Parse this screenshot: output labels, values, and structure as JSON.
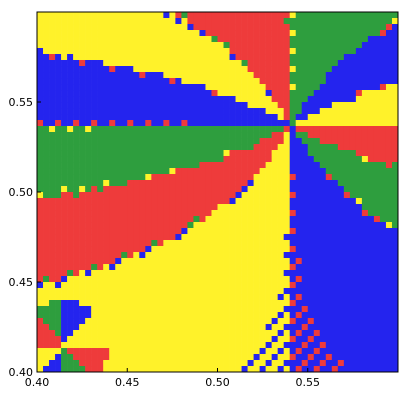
{
  "chart_data": {
    "type": "heatmap",
    "title": "",
    "xlabel": "",
    "ylabel": "",
    "xlim": [
      0.4,
      0.6
    ],
    "ylim": [
      0.4,
      0.6
    ],
    "x_ticks": [
      "0.40",
      "0.45",
      "0.50",
      "0.55"
    ],
    "y_ticks": [
      "0.40",
      "0.45",
      "0.50",
      "0.55"
    ],
    "x_tick_values": [
      0.4,
      0.45,
      0.5,
      0.55
    ],
    "y_tick_values": [
      0.4,
      0.45,
      0.5,
      0.55
    ],
    "grid": false,
    "legend": "none",
    "center": [
      0.541,
      0.537
    ],
    "petals": 12,
    "basin_colors": [
      "#ee3b3b",
      "#2e9e3e",
      "#fff22a",
      "#2424ee"
    ],
    "sector_color_order": [
      2,
      3,
      1,
      0
    ]
  }
}
